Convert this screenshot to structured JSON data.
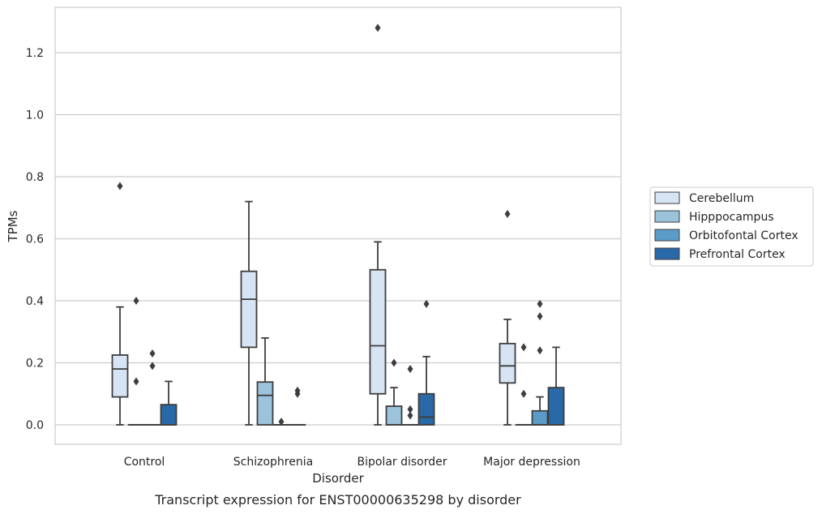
{
  "chart_data": {
    "type": "box",
    "title": "",
    "caption": "Transcript expression for ENST00000635298 by disorder",
    "xlabel": "Disorder",
    "ylabel": "TPMs",
    "ylim": [
      -0.06,
      1.35
    ],
    "yticks": [
      0.0,
      0.2,
      0.4,
      0.6,
      0.8,
      1.0,
      1.2
    ],
    "ytick_labels": [
      "0.0",
      "0.2",
      "0.4",
      "0.6",
      "0.8",
      "1.0",
      "1.2"
    ],
    "grid": "horizontal",
    "legend_position": "right",
    "categories": [
      "Control",
      "Schizophrenia",
      "Bipolar disorder",
      "Major depression"
    ],
    "series": [
      {
        "name": "Cerebellum",
        "color": "#d6e4f3",
        "boxes": [
          {
            "whisker_low": 0.0,
            "q1": 0.09,
            "median": 0.18,
            "q3": 0.225,
            "whisker_high": 0.38,
            "outliers": [
              0.77
            ]
          },
          {
            "whisker_low": 0.0,
            "q1": 0.25,
            "median": 0.405,
            "q3": 0.495,
            "whisker_high": 0.72,
            "outliers": []
          },
          {
            "whisker_low": 0.0,
            "q1": 0.1,
            "median": 0.255,
            "q3": 0.5,
            "whisker_high": 0.59,
            "outliers": [
              1.28
            ]
          },
          {
            "whisker_low": 0.0,
            "q1": 0.135,
            "median": 0.19,
            "q3": 0.262,
            "whisker_high": 0.34,
            "outliers": [
              0.68
            ]
          }
        ]
      },
      {
        "name": "Hipppocampus",
        "color": "#9cc3dc",
        "boxes": [
          {
            "whisker_low": 0.0,
            "q1": 0.0,
            "median": 0.0,
            "q3": 0.0,
            "whisker_high": 0.0,
            "outliers": [
              0.14,
              0.4
            ]
          },
          {
            "whisker_low": 0.0,
            "q1": 0.0,
            "median": 0.095,
            "q3": 0.138,
            "whisker_high": 0.28,
            "outliers": []
          },
          {
            "whisker_low": 0.0,
            "q1": 0.0,
            "median": 0.0,
            "q3": 0.06,
            "whisker_high": 0.12,
            "outliers": [
              0.2
            ]
          },
          {
            "whisker_low": 0.0,
            "q1": 0.0,
            "median": 0.0,
            "q3": 0.0,
            "whisker_high": 0.0,
            "outliers": [
              0.1,
              0.25
            ]
          }
        ]
      },
      {
        "name": "Orbitofontal Cortex",
        "color": "#5a9bc8",
        "boxes": [
          {
            "whisker_low": 0.0,
            "q1": 0.0,
            "median": 0.0,
            "q3": 0.0,
            "whisker_high": 0.0,
            "outliers": [
              0.19,
              0.23
            ]
          },
          {
            "whisker_low": 0.0,
            "q1": 0.0,
            "median": 0.0,
            "q3": 0.0,
            "whisker_high": 0.0,
            "outliers": [
              0.01
            ]
          },
          {
            "whisker_low": 0.0,
            "q1": 0.0,
            "median": 0.0,
            "q3": 0.0,
            "whisker_high": 0.0,
            "outliers": [
              0.03,
              0.05,
              0.18
            ]
          },
          {
            "whisker_low": 0.0,
            "q1": 0.0,
            "median": 0.0,
            "q3": 0.045,
            "whisker_high": 0.09,
            "outliers": [
              0.24,
              0.35,
              0.39
            ]
          }
        ]
      },
      {
        "name": "Prefrontal Cortex",
        "color": "#2a69a8",
        "boxes": [
          {
            "whisker_low": 0.0,
            "q1": 0.0,
            "median": 0.0,
            "q3": 0.065,
            "whisker_high": 0.14,
            "outliers": []
          },
          {
            "whisker_low": 0.0,
            "q1": 0.0,
            "median": 0.0,
            "q3": 0.0,
            "whisker_high": 0.0,
            "outliers": [
              0.1,
              0.11
            ]
          },
          {
            "whisker_low": 0.0,
            "q1": 0.0,
            "median": 0.025,
            "q3": 0.1,
            "whisker_high": 0.22,
            "outliers": [
              0.39
            ]
          },
          {
            "whisker_low": 0.0,
            "q1": 0.0,
            "median": 0.0,
            "q3": 0.12,
            "whisker_high": 0.25,
            "outliers": []
          }
        ]
      }
    ]
  }
}
